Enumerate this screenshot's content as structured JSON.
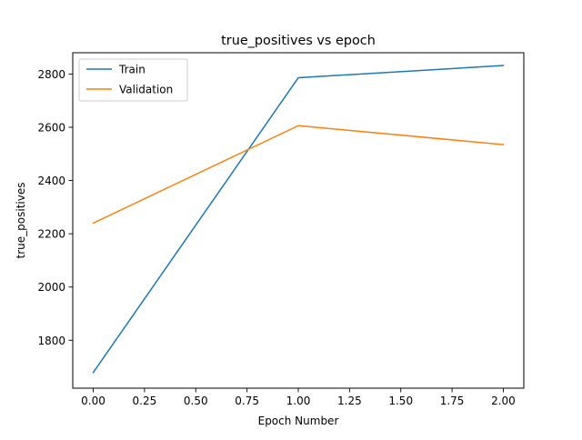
{
  "chart_data": {
    "type": "line",
    "title": "true_positives vs epoch",
    "xlabel": "Epoch Number",
    "ylabel": "true_positives",
    "xlim": [
      -0.1,
      2.1
    ],
    "ylim": [
      1620,
      2880
    ],
    "xticks": [
      0.0,
      0.25,
      0.5,
      0.75,
      1.0,
      1.25,
      1.5,
      1.75,
      2.0
    ],
    "xtick_labels": [
      "0.00",
      "0.25",
      "0.50",
      "0.75",
      "1.00",
      "1.25",
      "1.50",
      "1.75",
      "2.00"
    ],
    "yticks": [
      1800,
      2000,
      2200,
      2400,
      2600,
      2800
    ],
    "ytick_labels": [
      "1800",
      "2000",
      "2200",
      "2400",
      "2600",
      "2800"
    ],
    "grid": false,
    "legend_position": "upper-left",
    "x": [
      0,
      1,
      2
    ],
    "series": [
      {
        "name": "Train",
        "values": [
          1679,
          2786,
          2832
        ],
        "color": "#1f77b4"
      },
      {
        "name": "Validation",
        "values": [
          2240,
          2606,
          2535
        ],
        "color": "#ff7f0e"
      }
    ]
  }
}
